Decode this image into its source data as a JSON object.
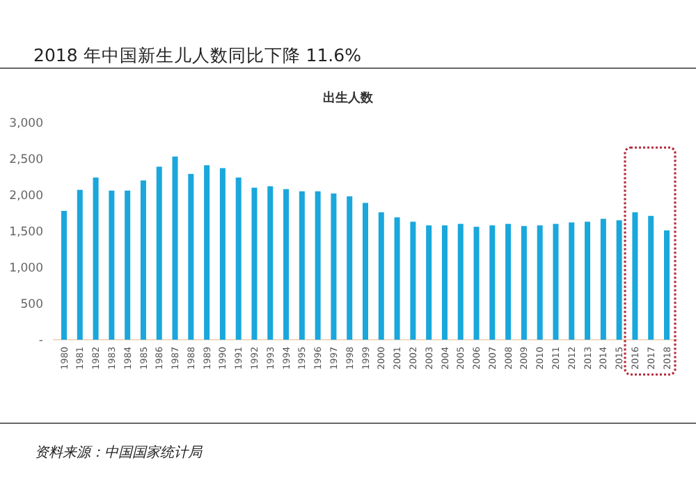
{
  "chart_data": {
    "type": "bar",
    "title": "2018 年中国新生儿人数同比下降 11.6%",
    "subtitle": "出生人数",
    "categories": [
      "1980",
      "1981",
      "1982",
      "1983",
      "1984",
      "1985",
      "1986",
      "1987",
      "1988",
      "1989",
      "1990",
      "1991",
      "1992",
      "1993",
      "1994",
      "1995",
      "1996",
      "1997",
      "1998",
      "1999",
      "2000",
      "2001",
      "2002",
      "2003",
      "2004",
      "2005",
      "2006",
      "2007",
      "2008",
      "2009",
      "2010",
      "2011",
      "2012",
      "2013",
      "2014",
      "2015",
      "2016",
      "2017",
      "2018"
    ],
    "values": [
      1780,
      2070,
      2240,
      2060,
      2060,
      2200,
      2390,
      2530,
      2290,
      2410,
      2370,
      2240,
      2100,
      2120,
      2080,
      2050,
      2050,
      2020,
      1980,
      1890,
      1760,
      1690,
      1630,
      1580,
      1580,
      1600,
      1560,
      1580,
      1600,
      1570,
      1580,
      1600,
      1620,
      1630,
      1670,
      1650,
      1760,
      1710,
      1510
    ],
    "color": "#1aa7dc",
    "ylim": [
      0,
      3000
    ],
    "yticks": [
      {
        "value": 0,
        "label": "-"
      },
      {
        "value": 500,
        "label": "500"
      },
      {
        "value": 1000,
        "label": "1,000"
      },
      {
        "value": 1500,
        "label": "1,500"
      },
      {
        "value": 2000,
        "label": "2,000"
      },
      {
        "value": 2500,
        "label": "2,500"
      },
      {
        "value": 3000,
        "label": "3,000"
      }
    ],
    "grid": false,
    "annotations": [
      "资料来源：中国国家统计局"
    ]
  }
}
